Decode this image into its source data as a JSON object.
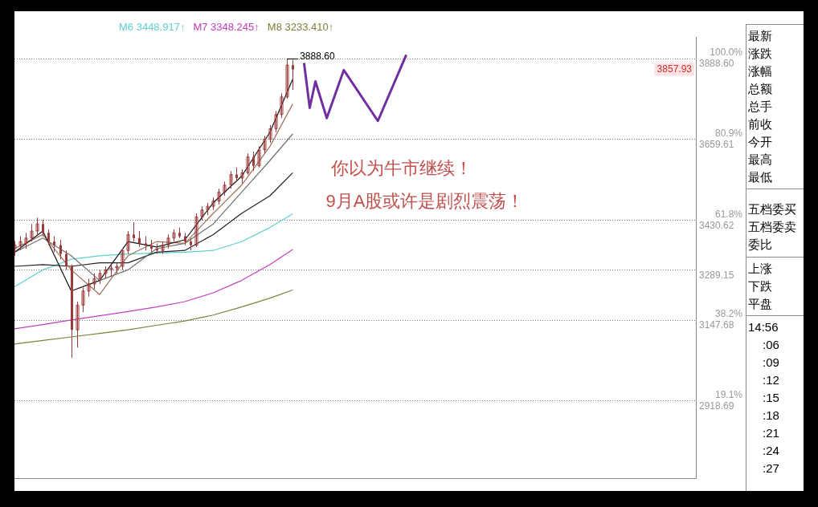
{
  "chart_data": {
    "type": "candlestick",
    "color": "#9b3b3b",
    "categories": [
      null,
      null,
      null,
      null,
      null,
      null,
      null,
      null,
      null,
      null,
      null,
      null,
      null,
      null,
      null,
      null,
      null,
      null,
      null,
      null,
      null,
      null,
      null,
      null,
      null,
      null,
      null,
      null,
      null,
      null,
      null,
      null,
      null,
      null,
      null,
      null,
      null,
      null,
      null,
      null,
      null,
      null,
      null,
      null,
      null,
      null,
      null,
      null,
      null,
      null,
      null,
      null,
      null,
      null,
      null,
      null,
      null,
      null,
      null,
      null,
      null,
      null,
      null,
      null,
      null,
      null,
      null,
      null,
      null,
      null,
      null,
      null,
      null,
      null,
      null,
      null,
      null,
      null,
      null,
      null,
      null,
      null,
      null,
      null,
      null,
      null,
      null,
      null,
      null,
      null,
      null,
      null,
      null,
      null,
      null,
      null,
      null,
      null,
      null,
      null,
      null,
      null,
      null,
      null,
      null,
      null,
      null,
      null,
      null,
      null,
      null,
      null,
      null,
      null,
      null,
      null,
      null,
      null,
      null,
      null,
      null
    ],
    "ohlc": [
      [
        3350,
        3372,
        3330,
        3360
      ],
      [
        3360,
        3385,
        3345,
        3370
      ],
      [
        3365,
        3395,
        3350,
        3380
      ],
      [
        3380,
        3420,
        3370,
        3400
      ],
      [
        3400,
        3438,
        3390,
        3420
      ],
      [
        3420,
        3432,
        3385,
        3395
      ],
      [
        3395,
        3405,
        3360,
        3370
      ],
      [
        3370,
        3385,
        3340,
        3360
      ],
      [
        3360,
        3375,
        3320,
        3335
      ],
      [
        3335,
        3345,
        3290,
        3300
      ],
      [
        3300,
        3305,
        3040,
        3120
      ],
      [
        3120,
        3200,
        3070,
        3190
      ],
      [
        3190,
        3240,
        3170,
        3230
      ],
      [
        3230,
        3265,
        3215,
        3250
      ],
      [
        3250,
        3280,
        3235,
        3265
      ],
      [
        3265,
        3290,
        3250,
        3280
      ],
      [
        3280,
        3300,
        3265,
        3290
      ],
      [
        3290,
        3305,
        3270,
        3295
      ],
      [
        3295,
        3310,
        3280,
        3300
      ],
      [
        3300,
        3350,
        3290,
        3345
      ],
      [
        3345,
        3400,
        3335,
        3390
      ],
      [
        3390,
        3425,
        3370,
        3380
      ],
      [
        3380,
        3400,
        3355,
        3365
      ],
      [
        3365,
        3385,
        3345,
        3360
      ],
      [
        3360,
        3375,
        3340,
        3350
      ],
      [
        3350,
        3365,
        3335,
        3345
      ],
      [
        3345,
        3370,
        3335,
        3360
      ],
      [
        3360,
        3390,
        3350,
        3380
      ],
      [
        3380,
        3405,
        3370,
        3395
      ],
      [
        3395,
        3410,
        3380,
        3385
      ],
      [
        3385,
        3395,
        3360,
        3370
      ],
      [
        3370,
        3380,
        3345,
        3360
      ],
      [
        3360,
        3450,
        3355,
        3440
      ],
      [
        3440,
        3470,
        3430,
        3460
      ],
      [
        3460,
        3480,
        3445,
        3470
      ],
      [
        3470,
        3495,
        3460,
        3485
      ],
      [
        3485,
        3520,
        3475,
        3510
      ],
      [
        3510,
        3540,
        3500,
        3530
      ],
      [
        3530,
        3570,
        3520,
        3560
      ],
      [
        3560,
        3580,
        3540,
        3550
      ],
      [
        3550,
        3575,
        3535,
        3565
      ],
      [
        3565,
        3620,
        3560,
        3610
      ],
      [
        3610,
        3625,
        3570,
        3585
      ],
      [
        3585,
        3640,
        3580,
        3630
      ],
      [
        3630,
        3670,
        3620,
        3660
      ],
      [
        3660,
        3700,
        3650,
        3690
      ],
      [
        3690,
        3740,
        3680,
        3730
      ],
      [
        3730,
        3790,
        3720,
        3780
      ],
      [
        3780,
        3888.6,
        3775,
        3870
      ],
      [
        3870,
        3885,
        3800,
        3857.93
      ],
      null,
      null,
      null,
      null,
      null,
      null,
      null,
      null,
      null,
      null,
      null,
      null,
      null,
      null,
      null,
      null,
      null,
      null,
      null,
      null,
      null,
      null,
      null,
      null,
      null,
      null,
      null,
      null,
      null,
      null,
      null,
      null,
      null,
      null,
      null,
      null,
      null,
      null,
      null,
      null,
      null,
      null,
      null,
      null,
      null,
      null,
      null,
      null,
      null,
      null,
      null,
      null,
      null,
      null,
      null,
      null,
      null,
      null,
      null,
      null,
      null,
      null,
      null,
      null,
      null,
      null,
      null,
      null,
      null,
      null,
      null
    ],
    "series": [
      {
        "type": "line",
        "color": "#111111",
        "values": [
          3340,
          null,
          null,
          null,
          null,
          3400,
          null,
          null,
          null,
          null,
          3230,
          null,
          null,
          null,
          null,
          3260,
          null,
          null,
          null,
          null,
          3370,
          null,
          null,
          null,
          null,
          3355,
          null,
          null,
          null,
          null,
          3375,
          null,
          null,
          null,
          null,
          3480,
          null,
          null,
          null,
          null,
          3555,
          null,
          null,
          null,
          null,
          3680,
          null,
          null,
          null,
          3830,
          null,
          null,
          null,
          null,
          null,
          null,
          null,
          null,
          null,
          null,
          null,
          null,
          null,
          null,
          null,
          null,
          null,
          null,
          null,
          null,
          null,
          null,
          null,
          null,
          null,
          null,
          null,
          null,
          null,
          null,
          null,
          null,
          null,
          null,
          null,
          null,
          null,
          null,
          null,
          null,
          null,
          null,
          null,
          null,
          null,
          null,
          null,
          null,
          null,
          null,
          null,
          null,
          null,
          null,
          null,
          null,
          null,
          null,
          null,
          null,
          null,
          null,
          null,
          null,
          null,
          null,
          null,
          null,
          null,
          null,
          null
        ]
      },
      {
        "type": "line",
        "color": "#a0705a",
        "values": [
          3350,
          null,
          null,
          null,
          null,
          3390,
          null,
          null,
          null,
          null,
          3290,
          null,
          null,
          null,
          null,
          3220,
          null,
          null,
          null,
          null,
          3330,
          null,
          null,
          null,
          null,
          3370,
          null,
          null,
          null,
          null,
          3365,
          null,
          null,
          null,
          null,
          3450,
          null,
          null,
          null,
          null,
          3530,
          null,
          null,
          null,
          null,
          3640,
          null,
          null,
          null,
          3760,
          null,
          null,
          null,
          null,
          null,
          null,
          null,
          null,
          null,
          null,
          null,
          null,
          null,
          null,
          null,
          null,
          null,
          null,
          null,
          null,
          null,
          null,
          null,
          null,
          null,
          null,
          null,
          null,
          null,
          null,
          null,
          null,
          null,
          null,
          null,
          null,
          null,
          null,
          null,
          null,
          null,
          null,
          null,
          null,
          null,
          null,
          null,
          null,
          null,
          null,
          null,
          null,
          null,
          null,
          null,
          null,
          null,
          null,
          null,
          null,
          null,
          null,
          null,
          null,
          null,
          null,
          null,
          null,
          null,
          null,
          null
        ]
      },
      {
        "type": "line",
        "color": "#707070",
        "values": [
          3340,
          null,
          null,
          null,
          null,
          3380,
          null,
          null,
          null,
          null,
          3330,
          null,
          null,
          null,
          null,
          3260,
          null,
          null,
          null,
          null,
          3290,
          null,
          null,
          null,
          null,
          3350,
          null,
          null,
          null,
          null,
          3365,
          null,
          null,
          null,
          null,
          3420,
          null,
          null,
          null,
          null,
          3510,
          null,
          null,
          null,
          null,
          3600,
          null,
          null,
          null,
          3675,
          null,
          null,
          null,
          null,
          null,
          null,
          null,
          null,
          null,
          null,
          null,
          null,
          null,
          null,
          null,
          null,
          null,
          null,
          null,
          null,
          null,
          null,
          null,
          null,
          null,
          null,
          null,
          null,
          null,
          null,
          null,
          null,
          null,
          null,
          null,
          null,
          null,
          null,
          null,
          null,
          null,
          null,
          null,
          null,
          null,
          null,
          null,
          null,
          null,
          null,
          null,
          null,
          null,
          null,
          null,
          null,
          null,
          null,
          null,
          null,
          null,
          null,
          null,
          null,
          null,
          null,
          null,
          null,
          null,
          null,
          null
        ]
      },
      {
        "type": "line",
        "color": "#222222",
        "values": [
          3300,
          null,
          null,
          null,
          null,
          3305,
          null,
          null,
          null,
          null,
          3300,
          null,
          null,
          null,
          null,
          3310,
          null,
          null,
          null,
          null,
          3310,
          null,
          null,
          null,
          null,
          3340,
          null,
          null,
          null,
          null,
          3345,
          null,
          null,
          null,
          null,
          3390,
          null,
          null,
          null,
          null,
          3450,
          null,
          null,
          null,
          null,
          3500,
          null,
          null,
          null,
          3565,
          null,
          null,
          null,
          null,
          null,
          null,
          null,
          null,
          null,
          null,
          null,
          null,
          null,
          null,
          null,
          null,
          null,
          null,
          null,
          null,
          null,
          null,
          null,
          null,
          null,
          null,
          null,
          null,
          null,
          null,
          null,
          null,
          null,
          null,
          null,
          null,
          null,
          null,
          null,
          null,
          null,
          null,
          null,
          null,
          null,
          null,
          null,
          null,
          null,
          null,
          null,
          null,
          null,
          null,
          null,
          null,
          null,
          null,
          null,
          null,
          null,
          null,
          null,
          null,
          null,
          null,
          null,
          null,
          null,
          null,
          null
        ]
      },
      {
        "name": "M6 3448.917↑",
        "type": "line",
        "color": "#5fcfcf",
        "values": [
          3242,
          null,
          null,
          null,
          null,
          3290,
          null,
          null,
          null,
          null,
          3320,
          null,
          null,
          null,
          null,
          3330,
          null,
          null,
          null,
          null,
          3335,
          null,
          null,
          null,
          null,
          3338,
          null,
          null,
          null,
          null,
          3340,
          null,
          null,
          null,
          null,
          3345,
          null,
          null,
          null,
          null,
          3370,
          null,
          null,
          null,
          null,
          3410,
          null,
          null,
          null,
          3449,
          null,
          null,
          null,
          null,
          null,
          null,
          null,
          null,
          null,
          null,
          null,
          null,
          null,
          null,
          null,
          null,
          null,
          null,
          null,
          null,
          null,
          null,
          null,
          null,
          null,
          null,
          null,
          null,
          null,
          null,
          null,
          null,
          null,
          null,
          null,
          null,
          null,
          null,
          null,
          null,
          null,
          null,
          null,
          null,
          null,
          null,
          null,
          null,
          null,
          null,
          null,
          null,
          null,
          null,
          null,
          null,
          null,
          null,
          null,
          null,
          null,
          null,
          null,
          null,
          null,
          null,
          null,
          null,
          null,
          null,
          null
        ]
      },
      {
        "name": "M7 3348.245↑",
        "type": "line",
        "color": "#c040c0",
        "values": [
          3123,
          null,
          null,
          null,
          null,
          3135,
          null,
          null,
          null,
          null,
          3148,
          null,
          null,
          null,
          null,
          3160,
          null,
          null,
          null,
          null,
          3172,
          null,
          null,
          null,
          null,
          3185,
          null,
          null,
          null,
          null,
          3200,
          null,
          null,
          null,
          null,
          3225,
          null,
          null,
          null,
          null,
          3260,
          null,
          null,
          null,
          null,
          3305,
          null,
          null,
          null,
          3348,
          null,
          null,
          null,
          null,
          null,
          null,
          null,
          null,
          null,
          null,
          null,
          null,
          null,
          null,
          null,
          null,
          null,
          null,
          null,
          null,
          null,
          null,
          null,
          null,
          null,
          null,
          null,
          null,
          null,
          null,
          null,
          null,
          null,
          null,
          null,
          null,
          null,
          null,
          null,
          null,
          null,
          null,
          null,
          null,
          null,
          null,
          null,
          null,
          null,
          null,
          null,
          null,
          null,
          null,
          null,
          null,
          null,
          null,
          null,
          null,
          null,
          null,
          null,
          null,
          null,
          null,
          null,
          null,
          null,
          null,
          null
        ]
      },
      {
        "name": "M8 3233.410↑",
        "type": "line",
        "color": "#80803a",
        "values": [
          3080,
          null,
          null,
          null,
          null,
          3090,
          null,
          null,
          null,
          null,
          3100,
          null,
          null,
          null,
          null,
          3110,
          null,
          null,
          null,
          null,
          3120,
          null,
          null,
          null,
          null,
          3133,
          null,
          null,
          null,
          null,
          3145,
          null,
          null,
          null,
          null,
          3162,
          null,
          null,
          null,
          null,
          3185,
          null,
          null,
          null,
          null,
          3210,
          null,
          null,
          null,
          3233,
          null,
          null,
          null,
          null,
          null,
          null,
          null,
          null,
          null,
          null,
          null,
          null,
          null,
          null,
          null,
          null,
          null,
          null,
          null,
          null,
          null,
          null,
          null,
          null,
          null,
          null,
          null,
          null,
          null,
          null,
          null,
          null,
          null,
          null,
          null,
          null,
          null,
          null,
          null,
          null,
          null,
          null,
          null,
          null,
          null,
          null,
          null,
          null,
          null,
          null,
          null,
          null,
          null,
          null,
          null,
          null,
          null,
          null,
          null,
          null,
          null,
          null,
          null,
          null,
          null,
          null,
          null,
          null,
          null,
          null,
          null
        ]
      },
      {
        "type": "line",
        "color": "#7030a0",
        "values": [
          null,
          null,
          null,
          null,
          null,
          null,
          null,
          null,
          null,
          null,
          null,
          null,
          null,
          null,
          null,
          null,
          null,
          null,
          null,
          null,
          null,
          null,
          null,
          null,
          null,
          null,
          null,
          null,
          null,
          null,
          null,
          null,
          null,
          null,
          null,
          null,
          null,
          null,
          null,
          null,
          null,
          null,
          null,
          null,
          null,
          null,
          null,
          null,
          null,
          null,
          null,
          3876,
          3749,
          3824,
          null,
          3720,
          null,
          null,
          3856,
          null,
          null,
          null,
          null,
          null,
          3712,
          null,
          null,
          null,
          null,
          3899,
          null,
          null,
          null,
          null,
          null,
          null,
          null,
          null,
          null,
          null,
          null,
          null,
          null,
          null,
          null,
          null,
          null,
          null,
          null,
          null,
          null,
          null,
          null,
          null,
          null,
          null,
          null,
          null,
          null,
          null,
          null,
          null,
          null,
          null,
          null,
          null,
          null,
          null,
          null,
          null,
          null,
          null,
          null,
          null,
          null,
          null,
          null,
          null,
          null,
          null,
          null
        ]
      }
    ],
    "ylim": [
      2700,
      3950
    ],
    "yticks": [
      {
        "value": 3888.6,
        "label": "3888.60"
      },
      3659.61,
      3430.62,
      3289.15,
      3147.68,
      2918.69
    ],
    "y2lim": [
      0.9,
      105.1
    ],
    "y2ticks": [
      {
        "value": 100,
        "label": "100.0%"
      },
      {
        "value": 80.9,
        "label": "80.9%"
      },
      {
        "value": 61.8,
        "label": "61.8%"
      },
      {
        "value": 38.2,
        "label": "38.2%"
      },
      {
        "value": 19.1,
        "label": "19.1%"
      }
    ],
    "grid": "y",
    "legend": "top left",
    "marker": "none",
    "tick_labels": "y",
    "annotations": [
      "你以为牛市继续！",
      "9月A股或许是剧烈震荡！",
      "3888.60",
      "3857.93",
      "最新",
      "涨跌",
      "涨幅",
      "总额",
      "总手",
      "前收",
      "今开",
      "最高",
      "最低",
      "五档委买",
      "五档委卖",
      "委比",
      "上涨",
      "下跌",
      "平盘",
      "14:56",
      ":06",
      ":09",
      ":12",
      ":15",
      ":18",
      ":21",
      ":24",
      ":27"
    ]
  }
}
